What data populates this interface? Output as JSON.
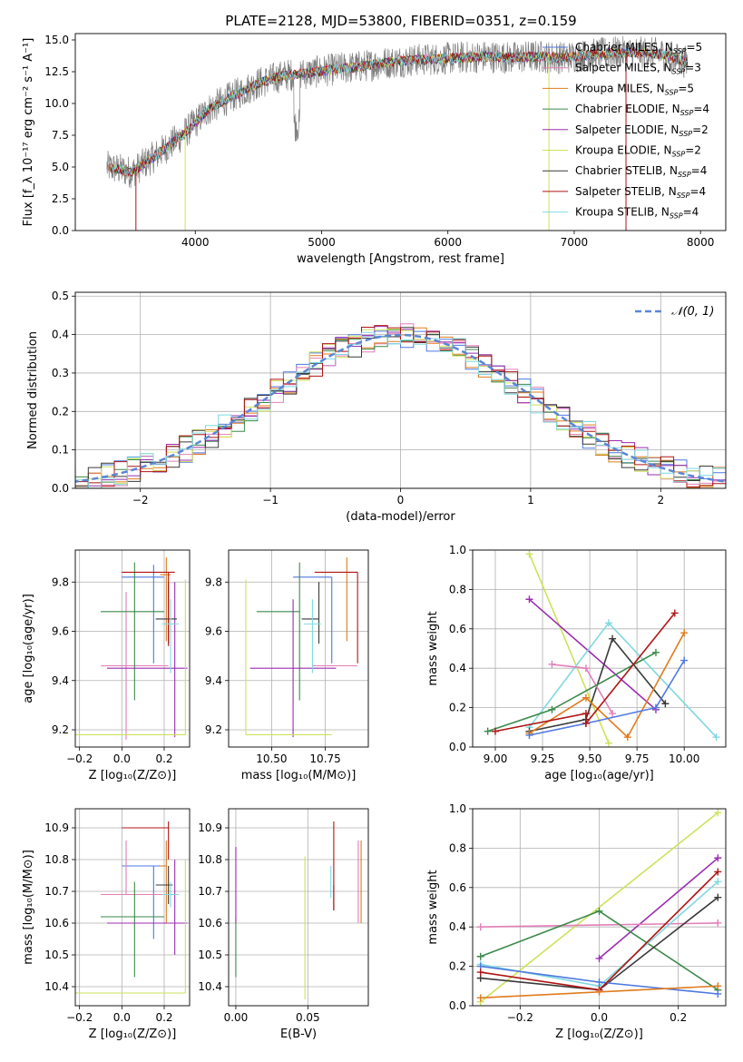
{
  "figure": {
    "title": "PLATE=2128, MJD=53800, FIBERID=0351, z=0.159",
    "palette": {
      "Chabrier MILES": "#4e79e0",
      "Salpeter MILES": "#e37fb8",
      "Kroupa MILES": "#e07b1e",
      "Chabrier ELODIE": "#3b8a4a",
      "Salpeter ELODIE": "#9b2db0",
      "Kroupa ELODIE": "#cde25a",
      "Chabrier STELIB": "#3a3a3a",
      "Salpeter STELIB": "#b01414",
      "Kroupa STELIB": "#7fd8e0"
    }
  },
  "chart_data": [
    {
      "type": "line",
      "name": "spectrum",
      "xlabel": "wavelength [Angstrom, rest frame]",
      "ylabel": "Flux [f_λ 10⁻¹⁷ erg cm⁻² s⁻¹ A⁻¹]",
      "xlim": [
        3050,
        8200
      ],
      "ylim": [
        0,
        15.5
      ],
      "xticks": [
        4000,
        5000,
        6000,
        7000,
        8000
      ],
      "yticks": [
        0.0,
        2.5,
        5.0,
        7.5,
        10.0,
        12.5,
        15.0
      ],
      "data_x": [
        3300,
        3500,
        3700,
        3900,
        4100,
        4300,
        4500,
        4700,
        4900,
        5100,
        5300,
        5500,
        5700,
        5900,
        6100,
        6300,
        6500,
        6700,
        6900,
        7100,
        7300,
        7500,
        7700,
        7900
      ],
      "data_y": [
        5.0,
        4.6,
        6.0,
        7.5,
        9.5,
        10.6,
        11.6,
        12.2,
        12.4,
        12.7,
        12.9,
        13.2,
        13.4,
        13.5,
        13.6,
        13.7,
        13.6,
        13.7,
        13.6,
        13.8,
        14.0,
        14.0,
        13.9,
        13.2
      ],
      "legend": [
        {
          "label": "Chabrier MILES, N_SSP=5"
        },
        {
          "label": "Salpeter MILES, N_SSP=3"
        },
        {
          "label": "Kroupa MILES, N_SSP=5"
        },
        {
          "label": "Chabrier ELODIE, N_SSP=4"
        },
        {
          "label": "Salpeter ELODIE, N_SSP=2"
        },
        {
          "label": "Kroupa ELODIE, N_SSP=2"
        },
        {
          "label": "Chabrier STELIB, N_SSP=4"
        },
        {
          "label": "Salpeter STELIB, N_SSP=4"
        },
        {
          "label": "Kroupa STELIB, N_SSP=4"
        }
      ],
      "legend_loc": "upper right",
      "grid": false
    },
    {
      "type": "histogram",
      "name": "residuals",
      "xlabel": "(data-model)/error",
      "ylabel": "Normed distribution",
      "xlim": [
        -2.5,
        2.5
      ],
      "ylim": [
        0,
        0.51
      ],
      "xticks": [
        -2,
        -1,
        0,
        1,
        2
      ],
      "yticks": [
        0.0,
        0.1,
        0.2,
        0.3,
        0.4,
        0.5
      ],
      "bin_width": 0.1,
      "gaussian_label": "𝒩(0, 1)",
      "legend_loc": "upper right",
      "grid": true
    },
    {
      "type": "errorbar",
      "name": "age-vs-Z",
      "xlabel": "Z [log₁₀(Z/Z⊙)]",
      "ylabel": "age  [log₁₀(age/yr)]",
      "xlim": [
        -0.22,
        0.32
      ],
      "ylim": [
        9.13,
        9.93
      ],
      "xticks": [
        -0.2,
        0.0,
        0.2
      ],
      "yticks": [
        9.2,
        9.4,
        9.6,
        9.8
      ],
      "grid": true,
      "points": [
        {
          "series": "Chabrier MILES",
          "x": 0.15,
          "y": 9.82,
          "xerr": [
            0.15,
            0.05
          ],
          "yerr": [
            0.35,
            0.05
          ]
        },
        {
          "series": "Salpeter MILES",
          "x": 0.02,
          "y": 9.46,
          "xerr": [
            0.12,
            0.2
          ],
          "yerr": [
            0.3,
            0.3
          ]
        },
        {
          "series": "Kroupa MILES",
          "x": 0.21,
          "y": 9.83,
          "xerr": [
            0.03,
            0.02
          ],
          "yerr": [
            0.27,
            0.07
          ]
        },
        {
          "series": "Chabrier ELODIE",
          "x": 0.06,
          "y": 9.68,
          "xerr": [
            0.16,
            0.14
          ],
          "yerr": [
            0.36,
            0.2
          ]
        },
        {
          "series": "Salpeter ELODIE",
          "x": 0.25,
          "y": 9.45,
          "xerr": [
            0.32,
            0.06
          ],
          "yerr": [
            0.28,
            0.35
          ]
        },
        {
          "series": "Kroupa ELODIE",
          "x": 0.3,
          "y": 9.18,
          "xerr": [
            0.52,
            0.0
          ],
          "yerr": [
            0.0,
            0.63
          ]
        },
        {
          "series": "Chabrier STELIB",
          "x": 0.22,
          "y": 9.65,
          "xerr": [
            0.06,
            0.04
          ],
          "yerr": [
            0.1,
            0.15
          ]
        },
        {
          "series": "Salpeter STELIB",
          "x": 0.22,
          "y": 9.84,
          "xerr": [
            0.22,
            0.03
          ],
          "yerr": [
            0.3,
            0.0
          ]
        },
        {
          "series": "Kroupa STELIB",
          "x": 0.23,
          "y": 9.63,
          "xerr": [
            0.04,
            0.04
          ],
          "yerr": [
            0.2,
            0.1
          ]
        }
      ]
    },
    {
      "type": "errorbar",
      "name": "age-vs-mass",
      "xlabel": "mass [log₁₀(M/M⊙)]",
      "ylabel": "",
      "xlim": [
        10.3,
        10.95
      ],
      "ylim": [
        9.13,
        9.93
      ],
      "xticks": [
        10.5,
        10.75
      ],
      "yticks": [
        9.2,
        9.4,
        9.6,
        9.8
      ],
      "grid": true,
      "points": [
        {
          "series": "Chabrier MILES",
          "x": 10.78,
          "y": 9.82,
          "xerr": [
            0.18,
            0.0
          ],
          "yerr": [
            0.35,
            0.0
          ]
        },
        {
          "series": "Salpeter MILES",
          "x": 10.69,
          "y": 9.46,
          "xerr": [
            0.0,
            0.21
          ],
          "yerr": [
            0.0,
            0.0
          ]
        },
        {
          "series": "Kroupa MILES",
          "x": 10.85,
          "y": 9.83,
          "xerr": [
            0.0,
            0.0
          ],
          "yerr": [
            0.27,
            0.07
          ]
        },
        {
          "series": "Chabrier ELODIE",
          "x": 10.63,
          "y": 9.68,
          "xerr": [
            0.2,
            0.0
          ],
          "yerr": [
            0.36,
            0.2
          ]
        },
        {
          "series": "Salpeter ELODIE",
          "x": 10.6,
          "y": 9.45,
          "xerr": [
            0.2,
            0.2
          ],
          "yerr": [
            0.28,
            0.28
          ]
        },
        {
          "series": "Kroupa ELODIE",
          "x": 10.38,
          "y": 9.18,
          "xerr": [
            0.0,
            0.4
          ],
          "yerr": [
            0.0,
            0.63
          ]
        },
        {
          "series": "Chabrier STELIB",
          "x": 10.72,
          "y": 9.65,
          "xerr": [
            0.08,
            0.0
          ],
          "yerr": [
            0.1,
            0.15
          ]
        },
        {
          "series": "Salpeter STELIB",
          "x": 10.9,
          "y": 9.84,
          "xerr": [
            0.2,
            0.0
          ],
          "yerr": [
            0.37,
            0.0
          ]
        },
        {
          "series": "Kroupa STELIB",
          "x": 10.69,
          "y": 9.63,
          "xerr": [
            0.04,
            0.04
          ],
          "yerr": [
            0.2,
            0.1
          ]
        }
      ]
    },
    {
      "type": "line",
      "name": "weight-vs-age",
      "xlabel": "age  [log₁₀(age/yr)]",
      "ylabel": "mass weight",
      "xlim": [
        8.88,
        10.22
      ],
      "ylim": [
        0,
        1.0
      ],
      "xticks": [
        9.0,
        9.25,
        9.5,
        9.75,
        10.0
      ],
      "yticks": [
        0.0,
        0.2,
        0.4,
        0.6,
        0.8,
        1.0
      ],
      "grid": true,
      "series": [
        {
          "key": "Kroupa ELODIE",
          "x": [
            9.18,
            9.6
          ],
          "y": [
            0.98,
            0.02
          ]
        },
        {
          "key": "Salpeter ELODIE",
          "x": [
            9.18,
            9.85
          ],
          "y": [
            0.75,
            0.19
          ]
        },
        {
          "key": "Kroupa STELIB",
          "x": [
            9.18,
            9.6,
            10.17
          ],
          "y": [
            0.1,
            0.63,
            0.05
          ]
        },
        {
          "key": "Chabrier STELIB",
          "x": [
            9.18,
            9.48,
            9.62,
            9.9
          ],
          "y": [
            0.08,
            0.14,
            0.55,
            0.22
          ]
        },
        {
          "key": "Salpeter MILES",
          "x": [
            9.3,
            9.48,
            9.62
          ],
          "y": [
            0.42,
            0.4,
            0.17
          ]
        },
        {
          "key": "Chabrier ELODIE",
          "x": [
            8.96,
            9.3,
            9.85
          ],
          "y": [
            0.08,
            0.19,
            0.48
          ]
        },
        {
          "key": "Kroupa MILES",
          "x": [
            9.18,
            9.48,
            9.7,
            10.0
          ],
          "y": [
            0.07,
            0.25,
            0.05,
            0.58
          ]
        },
        {
          "key": "Chabrier MILES",
          "x": [
            9.18,
            9.48,
            9.85,
            10.0
          ],
          "y": [
            0.06,
            0.12,
            0.2,
            0.44
          ]
        },
        {
          "key": "Salpeter STELIB",
          "x": [
            9.0,
            9.48,
            9.48,
            9.95
          ],
          "y": [
            0.08,
            0.17,
            0.12,
            0.68
          ]
        }
      ]
    },
    {
      "type": "errorbar",
      "name": "mass-vs-Z",
      "xlabel": "Z [log₁₀(Z/Z⊙)]",
      "ylabel": "mass [log₁₀(M/M⊙)]",
      "xlim": [
        -0.22,
        0.32
      ],
      "ylim": [
        10.34,
        10.96
      ],
      "xticks": [
        -0.2,
        0.0,
        0.2
      ],
      "yticks": [
        10.4,
        10.5,
        10.6,
        10.7,
        10.8,
        10.9
      ],
      "grid": true,
      "points": [
        {
          "series": "Chabrier MILES",
          "x": 0.15,
          "y": 10.78,
          "xerr": [
            0.15,
            0.05
          ],
          "yerr": [
            0.23,
            0.0
          ]
        },
        {
          "series": "Salpeter MILES",
          "x": 0.02,
          "y": 10.69,
          "xerr": [
            0.12,
            0.2
          ],
          "yerr": [
            0.0,
            0.17
          ]
        },
        {
          "series": "Kroupa MILES",
          "x": 0.21,
          "y": 10.78,
          "xerr": [
            0.03,
            0.0
          ],
          "yerr": [
            0.18,
            0.08
          ]
        },
        {
          "series": "Chabrier ELODIE",
          "x": 0.06,
          "y": 10.62,
          "xerr": [
            0.16,
            0.14
          ],
          "yerr": [
            0.19,
            0.11
          ]
        },
        {
          "series": "Salpeter ELODIE",
          "x": 0.25,
          "y": 10.6,
          "xerr": [
            0.32,
            0.06
          ],
          "yerr": [
            0.1,
            0.2
          ]
        },
        {
          "series": "Kroupa ELODIE",
          "x": 0.3,
          "y": 10.38,
          "xerr": [
            0.52,
            0.0
          ],
          "yerr": [
            0.0,
            0.42
          ]
        },
        {
          "series": "Chabrier STELIB",
          "x": 0.22,
          "y": 10.72,
          "xerr": [
            0.06,
            0.02
          ],
          "yerr": [
            0.06,
            0.06
          ]
        },
        {
          "series": "Salpeter STELIB",
          "x": 0.22,
          "y": 10.9,
          "xerr": [
            0.22,
            0.0
          ],
          "yerr": [
            0.1,
            0.02
          ]
        },
        {
          "series": "Kroupa STELIB",
          "x": 0.23,
          "y": 10.69,
          "xerr": [
            0.04,
            0.04
          ],
          "yerr": [
            0.04,
            0.04
          ]
        }
      ]
    },
    {
      "type": "errorbar",
      "name": "mass-vs-EBV",
      "xlabel": "E(B-V)",
      "ylabel": "",
      "xlim": [
        -0.005,
        0.092
      ],
      "ylim": [
        10.34,
        10.96
      ],
      "xticks": [
        0.0,
        0.05
      ],
      "yticks": [
        10.4,
        10.5,
        10.6,
        10.7,
        10.8,
        10.9
      ],
      "grid": true,
      "points": [
        {
          "series": "Chabrier MILES",
          "x": 0.0,
          "y": 10.78,
          "xerr": [
            0,
            0
          ],
          "yerr": [
            0.0,
            0.0
          ]
        },
        {
          "series": "Salpeter MILES",
          "x": 0.085,
          "y": 10.7,
          "xerr": [
            0,
            0
          ],
          "yerr": [
            0.1,
            0.16
          ]
        },
        {
          "series": "Kroupa MILES",
          "x": 0.087,
          "y": 10.7,
          "xerr": [
            0,
            0
          ],
          "yerr": [
            0.1,
            0.16
          ]
        },
        {
          "series": "Chabrier ELODIE",
          "x": 0.0,
          "y": 10.62,
          "xerr": [
            0,
            0
          ],
          "yerr": [
            0.19,
            0.0
          ]
        },
        {
          "series": "Salpeter ELODIE",
          "x": 0.0,
          "y": 10.6,
          "xerr": [
            0,
            0
          ],
          "yerr": [
            0.0,
            0.24
          ]
        },
        {
          "series": "Kroupa ELODIE",
          "x": 0.048,
          "y": 10.58,
          "xerr": [
            0,
            0
          ],
          "yerr": [
            0.22,
            0.23
          ]
        },
        {
          "series": "Chabrier STELIB",
          "x": 0.068,
          "y": 10.72,
          "xerr": [
            0,
            0
          ],
          "yerr": [
            0.08,
            0.0
          ]
        },
        {
          "series": "Salpeter STELIB",
          "x": 0.068,
          "y": 10.82,
          "xerr": [
            0,
            0
          ],
          "yerr": [
            0.18,
            0.1
          ]
        },
        {
          "series": "Kroupa STELIB",
          "x": 0.066,
          "y": 10.73,
          "xerr": [
            0,
            0
          ],
          "yerr": [
            0.05,
            0.05
          ]
        }
      ]
    },
    {
      "type": "line",
      "name": "weight-vs-Z",
      "xlabel": "Z [log₁₀(Z/Z⊙)]",
      "ylabel": "mass weight",
      "xlim": [
        -0.32,
        0.32
      ],
      "ylim": [
        0,
        1.0
      ],
      "xticks": [
        -0.2,
        0.0,
        0.2
      ],
      "yticks": [
        0.0,
        0.2,
        0.4,
        0.6,
        0.8,
        1.0
      ],
      "grid": true,
      "series": [
        {
          "key": "Kroupa ELODIE",
          "x": [
            -0.3,
            0.3
          ],
          "y": [
            0.02,
            0.98
          ]
        },
        {
          "key": "Salpeter ELODIE",
          "x": [
            0.0,
            0.3
          ],
          "y": [
            0.24,
            0.75
          ]
        },
        {
          "key": "Salpeter MILES",
          "x": [
            -0.3,
            0.3
          ],
          "y": [
            0.4,
            0.42
          ]
        },
        {
          "key": "Chabrier ELODIE",
          "x": [
            -0.3,
            0.0,
            0.3
          ],
          "y": [
            0.25,
            0.48,
            0.08
          ]
        },
        {
          "key": "Kroupa STELIB",
          "x": [
            -0.3,
            0.0,
            0.3
          ],
          "y": [
            0.21,
            0.1,
            0.63
          ]
        },
        {
          "key": "Chabrier STELIB",
          "x": [
            -0.3,
            0.0,
            0.3
          ],
          "y": [
            0.14,
            0.08,
            0.55
          ]
        },
        {
          "key": "Chabrier MILES",
          "x": [
            -0.3,
            0.0,
            0.3
          ],
          "y": [
            0.2,
            0.12,
            0.06
          ]
        },
        {
          "key": "Salpeter STELIB",
          "x": [
            -0.3,
            0.0,
            0.3
          ],
          "y": [
            0.17,
            0.08,
            0.68
          ]
        },
        {
          "key": "Kroupa MILES",
          "x": [
            -0.3,
            0.0,
            0.3
          ],
          "y": [
            0.04,
            0.07,
            0.1
          ]
        }
      ]
    }
  ]
}
